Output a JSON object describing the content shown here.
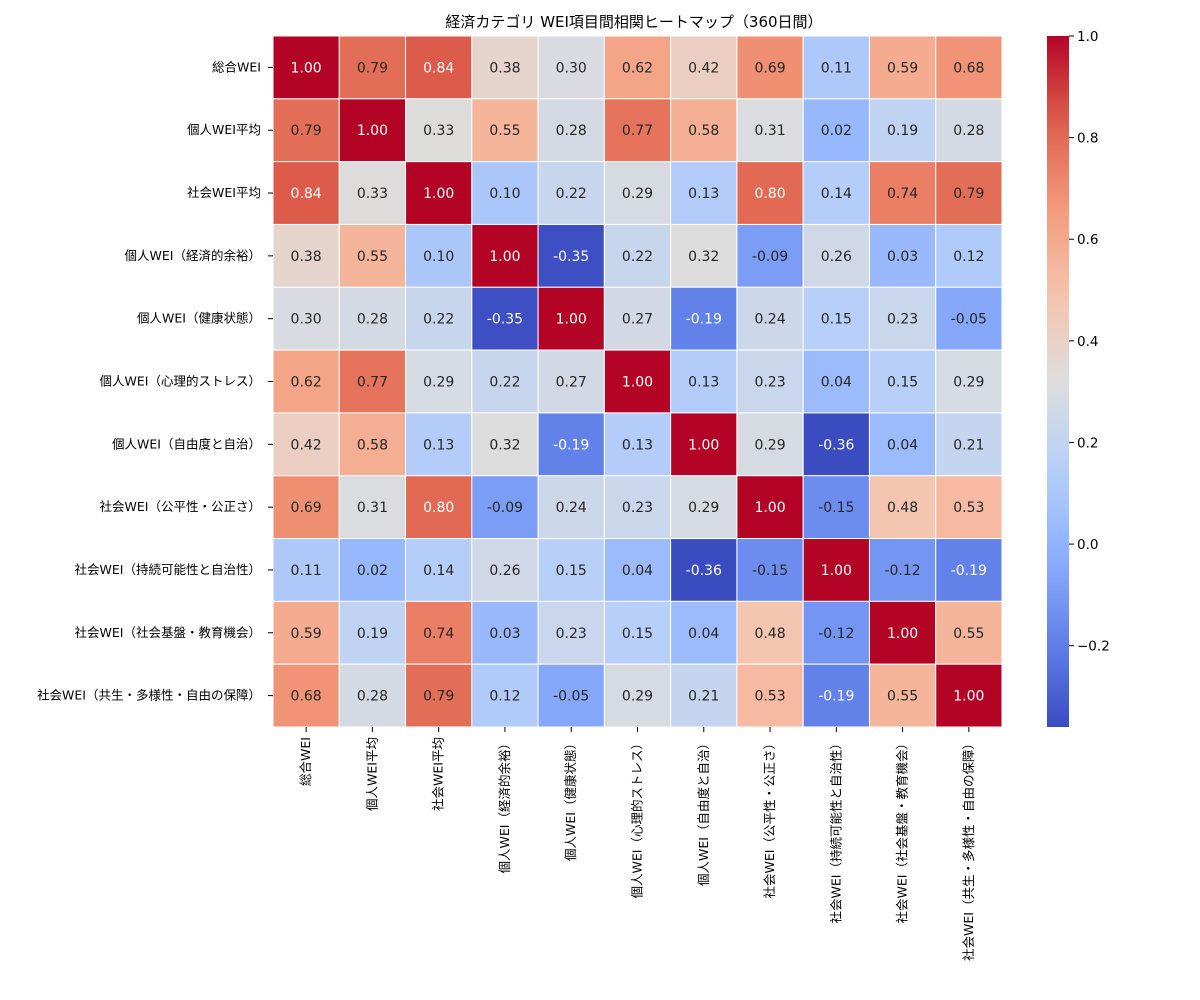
{
  "chart_data": {
    "type": "heatmap",
    "title": "経済カテゴリ WEI項目間相関ヒートマップ（360日間）",
    "labels": [
      "総合WEI",
      "個人WEI平均",
      "社会WEI平均",
      "個人WEI（経済的余裕）",
      "個人WEI（健康状態）",
      "個人WEI（心理的ストレス）",
      "個人WEI（自由度と自治）",
      "社会WEI（公平性・公正さ）",
      "社会WEI（持続可能性と自治性）",
      "社会WEI（社会基盤・教育機会）",
      "社会WEI（共生・多様性・自由の保障）"
    ],
    "matrix": [
      [
        1.0,
        0.79,
        0.84,
        0.38,
        0.3,
        0.62,
        0.42,
        0.69,
        0.11,
        0.59,
        0.68
      ],
      [
        0.79,
        1.0,
        0.33,
        0.55,
        0.28,
        0.77,
        0.58,
        0.31,
        0.02,
        0.19,
        0.28
      ],
      [
        0.84,
        0.33,
        1.0,
        0.1,
        0.22,
        0.29,
        0.13,
        0.8,
        0.14,
        0.74,
        0.79
      ],
      [
        0.38,
        0.55,
        0.1,
        1.0,
        -0.35,
        0.22,
        0.32,
        -0.09,
        0.26,
        0.03,
        0.12
      ],
      [
        0.3,
        0.28,
        0.22,
        -0.35,
        1.0,
        0.27,
        -0.19,
        0.24,
        0.15,
        0.23,
        -0.05
      ],
      [
        0.62,
        0.77,
        0.29,
        0.22,
        0.27,
        1.0,
        0.13,
        0.23,
        0.04,
        0.15,
        0.29
      ],
      [
        0.42,
        0.58,
        0.13,
        0.32,
        -0.19,
        0.13,
        1.0,
        0.29,
        -0.36,
        0.04,
        0.21
      ],
      [
        0.69,
        0.31,
        0.8,
        -0.09,
        0.24,
        0.23,
        0.29,
        1.0,
        -0.15,
        0.48,
        0.53
      ],
      [
        0.11,
        0.02,
        0.14,
        0.26,
        0.15,
        0.04,
        -0.36,
        -0.15,
        1.0,
        -0.12,
        -0.19
      ],
      [
        0.59,
        0.19,
        0.74,
        0.03,
        0.23,
        0.15,
        0.04,
        0.48,
        -0.12,
        1.0,
        0.55
      ],
      [
        0.68,
        0.28,
        0.79,
        0.12,
        -0.05,
        0.29,
        0.21,
        0.53,
        -0.19,
        0.55,
        1.0
      ]
    ],
    "colormap": "coolwarm",
    "vmin": -0.36,
    "vmax": 1.0,
    "colorbar_ticks": [
      "−0.2",
      "0.0",
      "0.2",
      "0.4",
      "0.6",
      "0.8",
      "1.0"
    ],
    "colorbar_tick_values": [
      -0.2,
      0.0,
      0.2,
      0.4,
      0.6,
      0.8,
      1.0
    ],
    "legend": "right"
  }
}
